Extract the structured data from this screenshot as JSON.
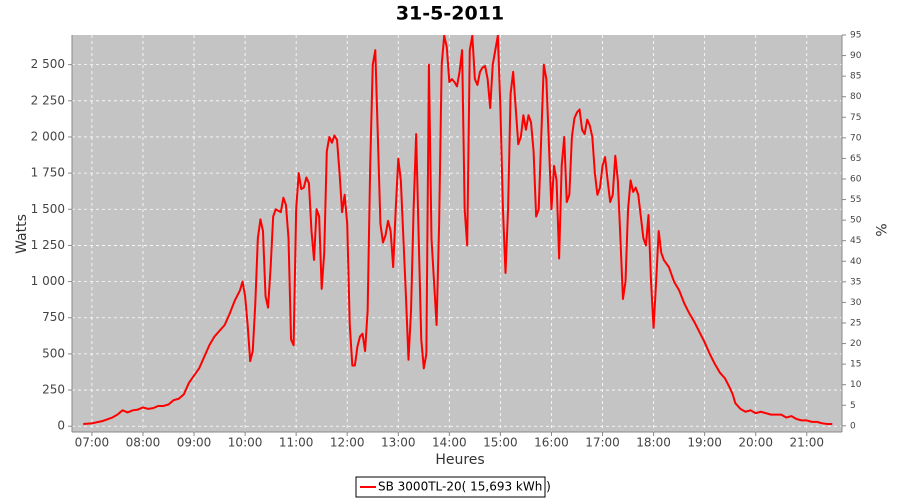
{
  "chart_data": {
    "type": "line",
    "title": "31-5-2011",
    "xlabel": "Heures",
    "ylabel": "Watts",
    "y2label": "%",
    "xlim": [
      6.61,
      21.69
    ],
    "xticks": [
      {
        "value": 7,
        "label": "07:00"
      },
      {
        "value": 8,
        "label": "08:00"
      },
      {
        "value": 9,
        "label": "09:00"
      },
      {
        "value": 10,
        "label": "10:00"
      },
      {
        "value": 11,
        "label": "11:00"
      },
      {
        "value": 12,
        "label": "12:00"
      },
      {
        "value": 13,
        "label": "13:00"
      },
      {
        "value": 14,
        "label": "14:00"
      },
      {
        "value": 15,
        "label": "15:00"
      },
      {
        "value": 16,
        "label": "16:00"
      },
      {
        "value": 17,
        "label": "17:00"
      },
      {
        "value": 18,
        "label": "18:00"
      },
      {
        "value": 19,
        "label": "19:00"
      },
      {
        "value": 20,
        "label": "20:00"
      },
      {
        "value": 21,
        "label": "21:00"
      }
    ],
    "ylim": [
      -40,
      2705
    ],
    "yticks": [
      0,
      250,
      500,
      750,
      {
        "value": 1000,
        "label": "1 000"
      },
      {
        "value": 1250,
        "label": "1 250"
      },
      {
        "value": 1500,
        "label": "1 500"
      },
      {
        "value": 1750,
        "label": "1 750"
      },
      {
        "value": 2000,
        "label": "2 000"
      },
      {
        "value": 2250,
        "label": "2 250"
      },
      {
        "value": 2500,
        "label": "2 500"
      }
    ],
    "y2lim": [
      -1.5,
      95
    ],
    "y2ticks": [
      0,
      5,
      10,
      15,
      20,
      25,
      30,
      35,
      40,
      45,
      50,
      55,
      60,
      65,
      70,
      75,
      80,
      85,
      90,
      95
    ],
    "grid": true,
    "x": [
      6.83,
      7.0,
      7.2,
      7.4,
      7.5,
      7.6,
      7.7,
      7.8,
      7.9,
      8.0,
      8.1,
      8.2,
      8.3,
      8.4,
      8.5,
      8.6,
      8.7,
      8.8,
      8.9,
      9.0,
      9.1,
      9.2,
      9.3,
      9.4,
      9.5,
      9.6,
      9.7,
      9.8,
      9.9,
      9.95,
      10,
      10.05,
      10.1,
      10.15,
      10.2,
      10.25,
      10.3,
      10.35,
      10.4,
      10.45,
      10.5,
      10.55,
      10.6,
      10.65,
      10.7,
      10.75,
      10.8,
      10.85,
      10.9,
      10.95,
      11,
      11.05,
      11.1,
      11.15,
      11.2,
      11.25,
      11.3,
      11.35,
      11.4,
      11.45,
      11.5,
      11.55,
      11.6,
      11.65,
      11.7,
      11.75,
      11.8,
      11.85,
      11.9,
      11.95,
      12,
      12.05,
      12.1,
      12.15,
      12.2,
      12.25,
      12.3,
      12.35,
      12.4,
      12.45,
      12.5,
      12.55,
      12.6,
      12.65,
      12.7,
      12.75,
      12.8,
      12.85,
      12.9,
      12.95,
      13,
      13.05,
      13.1,
      13.15,
      13.2,
      13.25,
      13.3,
      13.35,
      13.4,
      13.45,
      13.5,
      13.55,
      13.6,
      13.65,
      13.7,
      13.75,
      13.8,
      13.85,
      13.9,
      13.95,
      14,
      14.05,
      14.1,
      14.15,
      14.2,
      14.25,
      14.3,
      14.35,
      14.4,
      14.45,
      14.5,
      14.55,
      14.6,
      14.65,
      14.7,
      14.75,
      14.8,
      14.85,
      14.9,
      14.95,
      15,
      15.05,
      15.1,
      15.15,
      15.2,
      15.25,
      15.3,
      15.35,
      15.4,
      15.45,
      15.5,
      15.55,
      15.6,
      15.65,
      15.7,
      15.75,
      15.8,
      15.85,
      15.9,
      15.95,
      16,
      16.05,
      16.1,
      16.15,
      16.2,
      16.25,
      16.3,
      16.35,
      16.4,
      16.45,
      16.5,
      16.55,
      16.6,
      16.65,
      16.7,
      16.75,
      16.8,
      16.85,
      16.9,
      16.95,
      17,
      17.05,
      17.1,
      17.15,
      17.2,
      17.25,
      17.3,
      17.35,
      17.4,
      17.45,
      17.5,
      17.55,
      17.6,
      17.65,
      17.7,
      17.75,
      17.8,
      17.85,
      17.9,
      17.95,
      18,
      18.05,
      18.1,
      18.15,
      18.2,
      18.3,
      18.4,
      18.5,
      18.6,
      18.7,
      18.8,
      18.9,
      19.0,
      19.1,
      19.2,
      19.3,
      19.4,
      19.5,
      19.55,
      19.6,
      19.7,
      19.8,
      19.9,
      20.0,
      20.1,
      20.2,
      20.3,
      20.4,
      20.5,
      20.6,
      20.7,
      20.8,
      20.9,
      21.0,
      21.1,
      21.2,
      21.3,
      21.4,
      21.5
    ],
    "series": [
      {
        "name": "SB 3000TL-20( 15,693 kWh )",
        "color": "#ff0000",
        "values": [
          15,
          20,
          35,
          60,
          80,
          110,
          95,
          110,
          115,
          130,
          120,
          125,
          140,
          140,
          150,
          180,
          190,
          220,
          300,
          350,
          400,
          480,
          560,
          620,
          660,
          700,
          780,
          870,
          940,
          1000,
          900,
          700,
          450,
          520,
          850,
          1300,
          1430,
          1350,
          900,
          820,
          1100,
          1450,
          1500,
          1490,
          1480,
          1580,
          1530,
          1300,
          600,
          560,
          1500,
          1750,
          1640,
          1650,
          1720,
          1680,
          1350,
          1150,
          1500,
          1450,
          950,
          1200,
          1900,
          2000,
          1960,
          2010,
          1980,
          1750,
          1480,
          1600,
          1400,
          700,
          420,
          420,
          550,
          620,
          640,
          520,
          800,
          1800,
          2500,
          2600,
          2000,
          1400,
          1270,
          1320,
          1420,
          1350,
          1100,
          1500,
          1850,
          1700,
          1300,
          900,
          460,
          800,
          1500,
          2020,
          1300,
          600,
          400,
          500,
          2500,
          1300,
          1000,
          700,
          1400,
          2500,
          2700,
          2620,
          2380,
          2400,
          2380,
          2350,
          2450,
          2600,
          1500,
          1250,
          2600,
          2700,
          2400,
          2360,
          2450,
          2480,
          2490,
          2400,
          2200,
          2500,
          2600,
          2700,
          2200,
          1500,
          1060,
          1500,
          2300,
          2450,
          2200,
          1950,
          2000,
          2150,
          2050,
          2150,
          2100,
          1900,
          1450,
          1500,
          2000,
          2500,
          2400,
          1950,
          1500,
          1800,
          1700,
          1160,
          1800,
          2000,
          1550,
          1600,
          2000,
          2130,
          2170,
          2190,
          2050,
          2020,
          2120,
          2080,
          2000,
          1750,
          1600,
          1650,
          1800,
          1860,
          1700,
          1550,
          1600,
          1870,
          1700,
          1300,
          880,
          1000,
          1500,
          1700,
          1620,
          1650,
          1600,
          1450,
          1300,
          1250,
          1460,
          1000,
          680,
          1000,
          1350,
          1200,
          1150,
          1100,
          1000,
          940,
          850,
          780,
          720,
          650,
          580,
          500,
          430,
          370,
          330,
          260,
          220,
          160,
          120,
          100,
          110,
          90,
          100,
          90,
          80,
          80,
          80,
          60,
          70,
          50,
          40,
          40,
          30,
          30,
          20,
          15,
          15
        ]
      }
    ]
  }
}
